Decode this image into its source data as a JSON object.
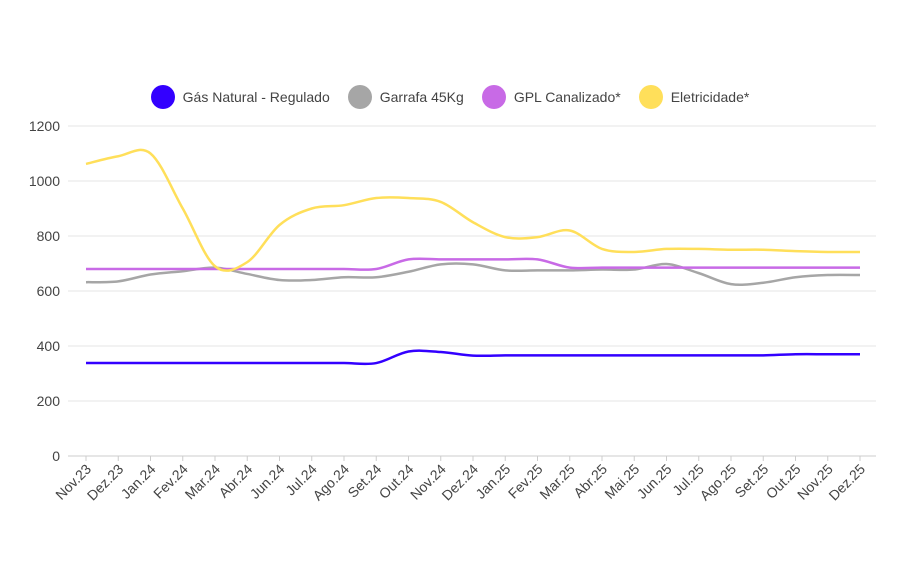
{
  "chart_data": {
    "type": "line",
    "title": "",
    "xlabel": "",
    "ylabel": "",
    "ylim": [
      0,
      1200
    ],
    "yticks": [
      0,
      200,
      400,
      600,
      800,
      1000,
      1200
    ],
    "grid": true,
    "legend_position": "top",
    "categories": [
      "Nov.23",
      "Dez.23",
      "Jan.24",
      "Fev.24",
      "Mar.24",
      "Abr.24",
      "Jun.24",
      "Jul.24",
      "Ago.24",
      "Set.24",
      "Out.24",
      "Nov.24",
      "Dez.24",
      "Jan.25",
      "Fev.25",
      "Mar.25",
      "Abr.25",
      "Mai.25",
      "Jun.25",
      "Jul.25",
      "Ago.25",
      "Set.25",
      "Out.25",
      "Nov.25",
      "Dez.25"
    ],
    "series": [
      {
        "name": "Gás Natural - Regulado",
        "color": "#3300ff",
        "values": [
          338,
          338,
          338,
          338,
          338,
          338,
          338,
          338,
          338,
          338,
          380,
          378,
          365,
          366,
          366,
          366,
          366,
          366,
          366,
          366,
          366,
          366,
          370,
          370,
          370
        ]
      },
      {
        "name": "Garrafa 45Kg",
        "color": "#a6a6a6",
        "values": [
          632,
          635,
          660,
          672,
          685,
          662,
          640,
          640,
          650,
          650,
          670,
          697,
          697,
          675,
          675,
          675,
          678,
          678,
          698,
          665,
          625,
          630,
          650,
          658,
          658
        ]
      },
      {
        "name": "GPL Canalizado*",
        "color": "#c86ae6",
        "values": [
          680,
          680,
          680,
          680,
          680,
          680,
          680,
          680,
          680,
          680,
          715,
          715,
          715,
          715,
          715,
          685,
          685,
          685,
          685,
          685,
          685,
          685,
          685,
          685,
          685
        ]
      },
      {
        "name": "Eletricidade*",
        "color": "#ffdf5a",
        "values": [
          1062,
          1090,
          1100,
          900,
          690,
          705,
          840,
          900,
          912,
          938,
          938,
          924,
          850,
          796,
          796,
          820,
          753,
          742,
          753,
          753,
          750,
          750,
          745,
          742,
          742
        ]
      }
    ]
  }
}
